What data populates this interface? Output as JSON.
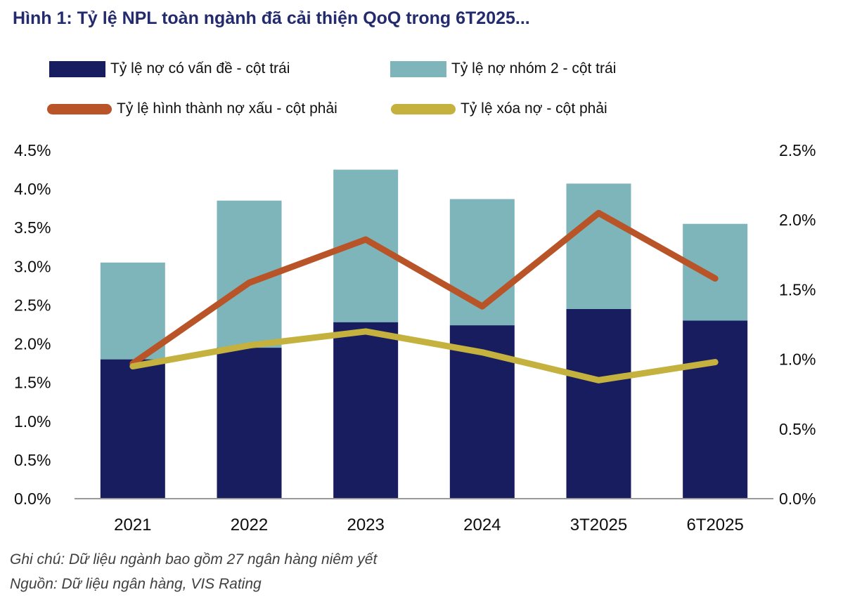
{
  "title": "Hình 1: Tỷ lệ NPL toàn ngành đã cải thiện QoQ trong 6T2025...",
  "legend": {
    "items": [
      {
        "label": "Tỷ lệ nợ có vấn đề - cột trái",
        "color": "#181d60",
        "type": "rect"
      },
      {
        "label": "Tỷ lệ nợ nhóm 2 - cột trái",
        "color": "#7db5bb",
        "type": "rect"
      },
      {
        "label": "Tỷ lệ hình thành nợ xấu - cột phải",
        "color": "#b85427",
        "type": "line"
      },
      {
        "label": "Tỷ lệ xóa nợ - cột phải",
        "color": "#c5b13e",
        "type": "line"
      }
    ]
  },
  "chart_data": {
    "type": "bar",
    "subtype": "stacked-bar-with-lines-dual-axis",
    "title": "Hình 1: Tỷ lệ NPL toàn ngành đã cải thiện QoQ trong 6T2025...",
    "categories": [
      "2021",
      "2022",
      "2023",
      "2024",
      "3T2025",
      "6T2025"
    ],
    "bar_series": [
      {
        "name": "Tỷ lệ nợ có vấn đề - cột trái",
        "axis": "left",
        "color": "#181d60",
        "values": [
          1.8,
          1.95,
          2.28,
          2.24,
          2.45,
          2.3
        ]
      },
      {
        "name": "Tỷ lệ nợ nhóm 2 - cột trái",
        "axis": "left",
        "color": "#7db5bb",
        "values": [
          1.25,
          1.9,
          1.97,
          1.63,
          1.62,
          1.25
        ]
      }
    ],
    "bar_totals_left_axis": [
      3.05,
      3.85,
      4.25,
      3.87,
      4.07,
      3.55
    ],
    "line_series": [
      {
        "name": "Tỷ lệ hình thành nợ xấu - cột phải",
        "axis": "right",
        "color": "#b85427",
        "values": [
          0.97,
          1.55,
          1.86,
          1.38,
          2.05,
          1.58
        ]
      },
      {
        "name": "Tỷ lệ xóa nợ - cột phải",
        "axis": "right",
        "color": "#c5b13e",
        "values": [
          0.95,
          1.1,
          1.2,
          1.05,
          0.85,
          0.98
        ]
      }
    ],
    "axes": {
      "left": {
        "range": [
          0,
          4.5
        ],
        "tick_labels": [
          "0.0%",
          "0.5%",
          "1.0%",
          "1.5%",
          "2.0%",
          "2.5%",
          "3.0%",
          "3.5%",
          "4.0%",
          "4.5%"
        ],
        "tick_values": [
          0,
          0.5,
          1,
          1.5,
          2,
          2.5,
          3,
          3.5,
          4,
          4.5
        ]
      },
      "right": {
        "range": [
          0,
          2.5
        ],
        "tick_labels": [
          "0.0%",
          "0.5%",
          "1.0%",
          "1.5%",
          "2.0%",
          "2.5%"
        ],
        "tick_values": [
          0,
          0.5,
          1,
          1.5,
          2,
          2.5
        ]
      }
    },
    "grid": false,
    "legend_position": "top"
  },
  "footnotes": {
    "note": "Ghi chú: Dữ liệu ngành bao gồm 27 ngân hàng niêm yết",
    "source": "Nguồn: Dữ liệu ngân hàng, VIS Rating"
  }
}
